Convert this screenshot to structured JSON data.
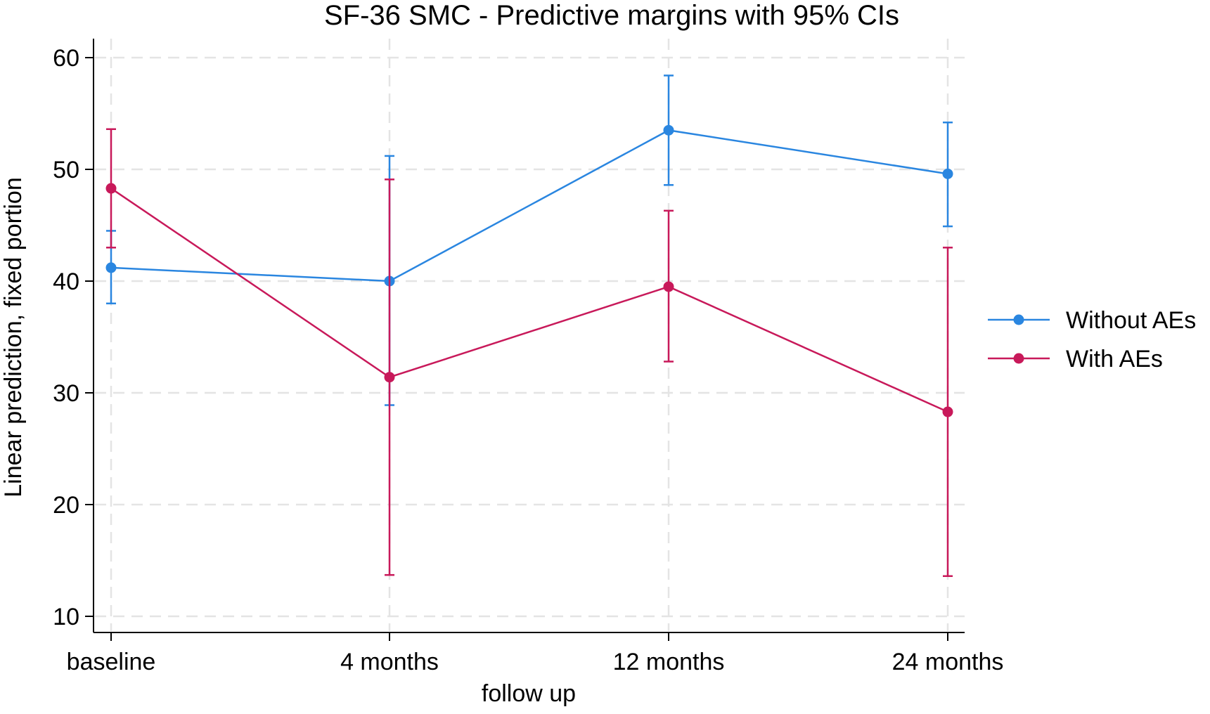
{
  "chart_data": {
    "type": "line",
    "title": "SF-36 SMC - Predictive margins with 95% CIs",
    "xlabel": "follow up",
    "ylabel": "Linear prediction, fixed portion",
    "categories": [
      "baseline",
      "4 months",
      "12 months",
      "24 months"
    ],
    "ylim": [
      10,
      60
    ],
    "yticks": [
      10,
      20,
      30,
      40,
      50,
      60
    ],
    "grid": true,
    "legend_position": "right",
    "series": [
      {
        "name": "Without AEs",
        "color": "#2a86e0",
        "values": [
          41.2,
          40.0,
          53.5,
          49.6
        ],
        "ci_low": [
          38.0,
          28.9,
          48.6,
          44.9
        ],
        "ci_high": [
          44.5,
          51.2,
          58.4,
          54.2
        ]
      },
      {
        "name": "With AEs",
        "color": "#c8195a",
        "values": [
          48.3,
          31.4,
          39.5,
          28.3
        ],
        "ci_low": [
          43.0,
          13.7,
          32.8,
          13.6
        ],
        "ci_high": [
          53.6,
          49.1,
          46.3,
          43.0
        ]
      }
    ]
  }
}
